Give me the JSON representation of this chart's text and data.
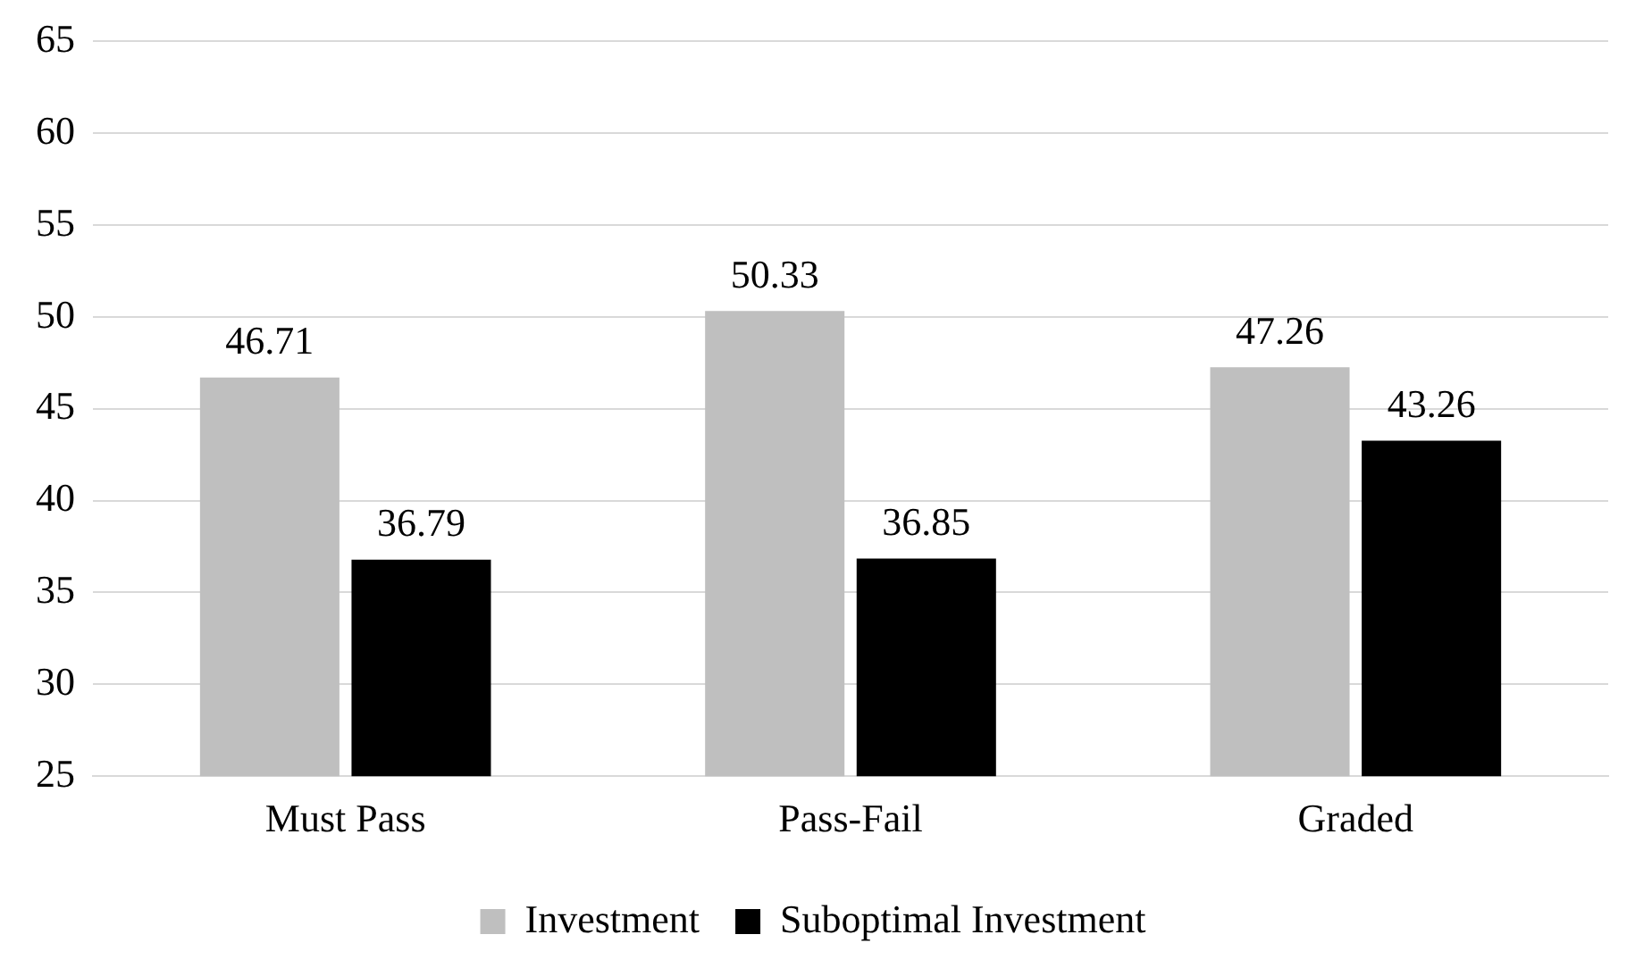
{
  "chart_data": {
    "type": "bar",
    "categories": [
      "Must Pass",
      "Pass-Fail",
      "Graded"
    ],
    "series": [
      {
        "name": "Investment",
        "color": "#bfbfbf",
        "values": [
          46.71,
          50.33,
          47.26
        ]
      },
      {
        "name": "Suboptimal Investment",
        "color": "#000000",
        "values": [
          36.79,
          36.85,
          43.26
        ]
      }
    ],
    "ylim": [
      25,
      65
    ],
    "yticks": [
      25,
      30,
      35,
      40,
      45,
      50,
      55,
      60,
      65
    ],
    "grid": "y",
    "legend": "bottom",
    "data_labels": true
  }
}
